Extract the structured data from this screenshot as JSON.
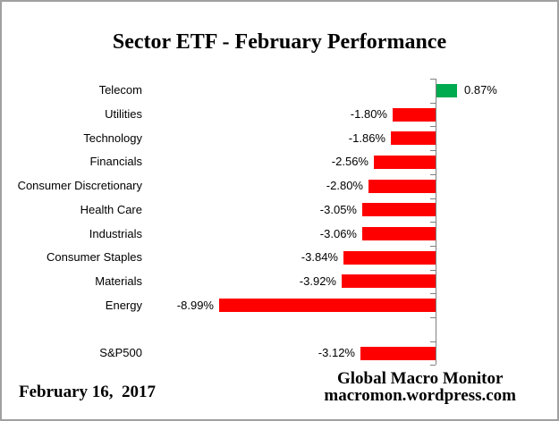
{
  "title": "Sector ETF - February Performance",
  "footer": {
    "date": "February 16,  2017",
    "brand_line1": "Global Macro Monitor",
    "brand_url": "macromon.wordpress.com"
  },
  "chart_data": {
    "type": "bar",
    "orientation": "horizontal",
    "title": "Sector ETF - February Performance",
    "xlabel": "",
    "ylabel": "",
    "xlim": [
      -10,
      2
    ],
    "grid": false,
    "legend": false,
    "value_unit": "percent",
    "colors": {
      "positive": "#00AB50",
      "negative": "#FF0000",
      "axis": "#808080"
    },
    "rows": [
      {
        "category": "Telecom",
        "value": 0.87,
        "label": "0.87%"
      },
      {
        "category": "Utilities",
        "value": -1.8,
        "label": "-1.80%"
      },
      {
        "category": "Technology",
        "value": -1.86,
        "label": "-1.86%"
      },
      {
        "category": "Financials",
        "value": -2.56,
        "label": "-2.56%"
      },
      {
        "category": "Consumer Discretionary",
        "value": -2.8,
        "label": "-2.80%"
      },
      {
        "category": "Health Care",
        "value": -3.05,
        "label": "-3.05%"
      },
      {
        "category": "Industrials",
        "value": -3.06,
        "label": "-3.06%"
      },
      {
        "category": "Consumer Staples",
        "value": -3.84,
        "label": "-3.84%"
      },
      {
        "category": "Materials",
        "value": -3.92,
        "label": "-3.92%"
      },
      {
        "category": "Energy",
        "value": -8.99,
        "label": "-8.99%"
      },
      {
        "category": "",
        "value": null,
        "label": ""
      },
      {
        "category": "S&P500",
        "value": -3.12,
        "label": "-3.12%"
      }
    ]
  }
}
